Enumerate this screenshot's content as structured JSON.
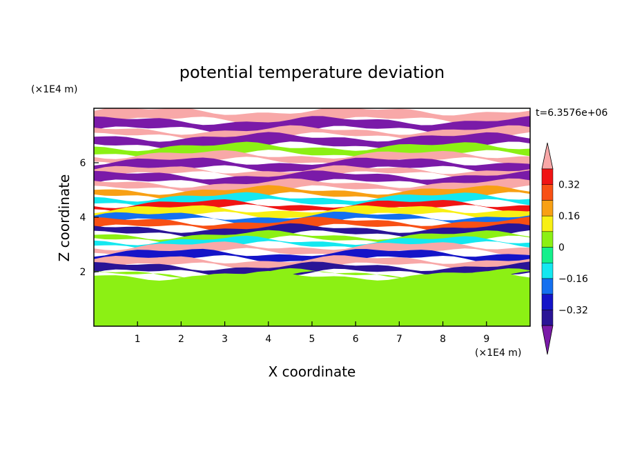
{
  "chart_data": {
    "type": "heatmap",
    "title": "potential temperature deviation",
    "xlabel": "X coordinate",
    "ylabel": "Z coordinate",
    "x_unit": "(×1E4 m)",
    "y_unit": "(×1E4 m)",
    "time_label": "t=6.3576e+06",
    "xlim": [
      0,
      10
    ],
    "ylim": [
      0,
      8
    ],
    "x_ticks": [
      1,
      2,
      3,
      4,
      5,
      6,
      7,
      8,
      9
    ],
    "y_ticks": [
      2,
      4,
      6
    ],
    "colorbar": {
      "levels": [
        -0.4,
        -0.32,
        -0.24,
        -0.16,
        -0.08,
        0,
        0.08,
        0.16,
        0.24,
        0.32,
        0.4
      ],
      "tick_labels": [
        "0.32",
        "0.16",
        "0",
        "−0.16",
        "−0.32"
      ],
      "tick_values": [
        0.32,
        0.16,
        0,
        -0.16,
        -0.32
      ],
      "colors": [
        "#7a1aa8",
        "#2a1496",
        "#1414c8",
        "#1470f0",
        "#14e8f0",
        "#14f08c",
        "#8cf014",
        "#f8f014",
        "#f8a014",
        "#f85014",
        "#f01414",
        "#f8a8a8"
      ],
      "extend": "both"
    },
    "bands": [
      {
        "z": [
          7.55,
          7.9
        ],
        "value": 0.45
      },
      {
        "z": [
          7.2,
          7.55
        ],
        "value": -0.45
      },
      {
        "z": [
          6.95,
          7.2
        ],
        "value": 0.45
      },
      {
        "z": [
          6.6,
          6.95
        ],
        "value": -0.45
      },
      {
        "z": [
          6.3,
          6.6
        ],
        "value": 0.0
      },
      {
        "z": [
          6.05,
          6.3
        ],
        "value": 0.45
      },
      {
        "z": [
          5.75,
          6.05
        ],
        "value": -0.45
      },
      {
        "z": [
          5.55,
          5.75
        ],
        "value": 0.45
      },
      {
        "z": [
          5.25,
          5.55
        ],
        "value": -0.45
      },
      {
        "z": [
          5.0,
          5.25
        ],
        "value": 0.45
      },
      {
        "z": [
          4.75,
          5.0
        ],
        "value": 0.2
      },
      {
        "z": [
          4.5,
          4.75
        ],
        "value": -0.1
      },
      {
        "z": [
          4.3,
          4.5
        ],
        "value": 0.36
      },
      {
        "z": [
          4.05,
          4.3
        ],
        "value": 0.12
      },
      {
        "z": [
          3.85,
          4.05
        ],
        "value": -0.2
      },
      {
        "z": [
          3.6,
          3.85
        ],
        "value": 0.3
      },
      {
        "z": [
          3.35,
          3.6
        ],
        "value": -0.4
      },
      {
        "z": [
          3.15,
          3.35
        ],
        "value": 0.05
      },
      {
        "z": [
          2.95,
          3.15
        ],
        "value": -0.12
      },
      {
        "z": [
          2.7,
          2.95
        ],
        "value": 0.45
      },
      {
        "z": [
          2.45,
          2.7
        ],
        "value": -0.28
      },
      {
        "z": [
          2.2,
          2.45
        ],
        "value": 0.45
      },
      {
        "z": [
          1.95,
          2.2
        ],
        "value": -0.36
      },
      {
        "z": [
          1.85,
          1.95
        ],
        "value": 0.02
      },
      {
        "z": [
          0.0,
          1.85
        ],
        "value": 0.06
      }
    ]
  }
}
